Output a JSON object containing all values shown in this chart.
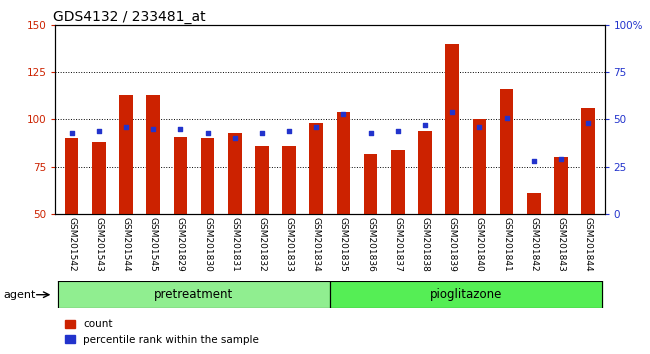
{
  "title": "GDS4132 / 233481_at",
  "samples": [
    "GSM201542",
    "GSM201543",
    "GSM201544",
    "GSM201545",
    "GSM201829",
    "GSM201830",
    "GSM201831",
    "GSM201832",
    "GSM201833",
    "GSM201834",
    "GSM201835",
    "GSM201836",
    "GSM201837",
    "GSM201838",
    "GSM201839",
    "GSM201840",
    "GSM201841",
    "GSM201842",
    "GSM201843",
    "GSM201844"
  ],
  "count_values": [
    90,
    88,
    113,
    113,
    91,
    90,
    93,
    86,
    86,
    98,
    104,
    82,
    84,
    94,
    140,
    100,
    116,
    61,
    80,
    106
  ],
  "percentile_values": [
    43,
    44,
    46,
    45,
    45,
    43,
    40,
    43,
    44,
    46,
    53,
    43,
    44,
    47,
    54,
    46,
    51,
    28,
    29,
    48
  ],
  "group_labels": [
    "pretreatment",
    "pioglitazone"
  ],
  "bar_color": "#CC2200",
  "dot_color": "#2233CC",
  "ylim_left": [
    50,
    150
  ],
  "ylim_right": [
    0,
    100
  ],
  "yticks_left": [
    50,
    75,
    100,
    125,
    150
  ],
  "yticks_right": [
    0,
    25,
    50,
    75,
    100
  ],
  "ytick_labels_right": [
    "0",
    "25",
    "50",
    "75",
    "100%"
  ],
  "bg_color": "#FFFFFF",
  "bar_width": 0.5,
  "agent_label": "agent",
  "legend_count": "count",
  "legend_percentile": "percentile rank within the sample",
  "title_fontsize": 10,
  "tick_fontsize": 7.5,
  "label_fontsize": 6.5,
  "group_fontsize": 8.5
}
